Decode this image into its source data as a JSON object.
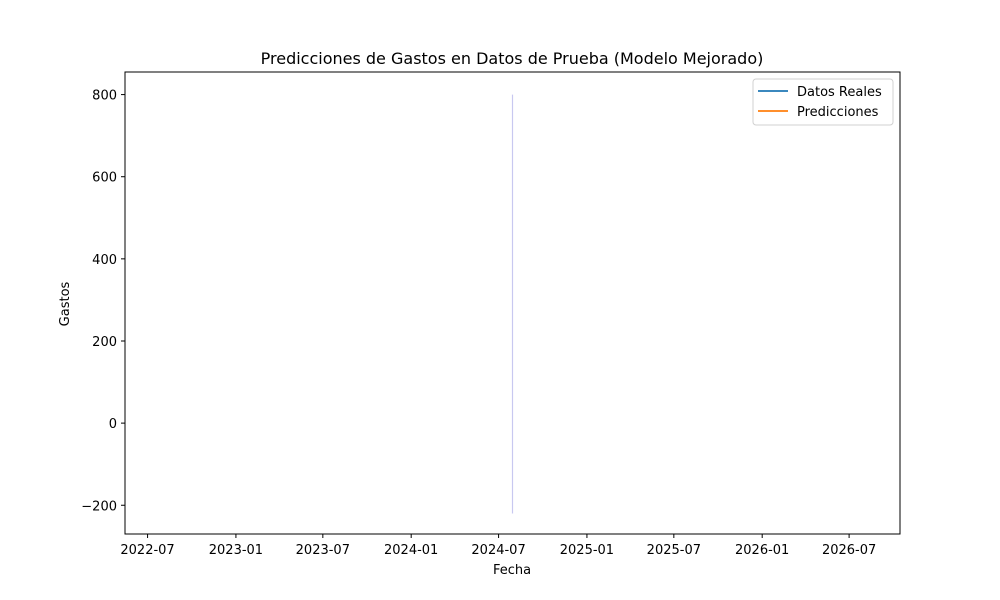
{
  "chart_data": {
    "type": "line",
    "title": "Predicciones de Gastos en Datos de Prueba (Modelo Mejorado)",
    "xlabel": "Fecha",
    "ylabel": "Gastos",
    "x_tick_labels": [
      "2022-07",
      "2023-01",
      "2023-07",
      "2024-01",
      "2024-07",
      "2025-01",
      "2025-07",
      "2026-01",
      "2026-07"
    ],
    "y_ticks": [
      -200,
      0,
      200,
      400,
      600,
      800
    ],
    "y_tick_labels": [
      "−200",
      "0",
      "200",
      "400",
      "600",
      "800"
    ],
    "xlim": [
      "2022-05-15",
      "2026-10-15"
    ],
    "ylim": [
      -270,
      855
    ],
    "grid": false,
    "legend_position": "top-right",
    "series": [
      {
        "name": "Datos Reales",
        "color": "#1f77b4",
        "x": [],
        "y": []
      },
      {
        "name": "Predicciones",
        "color": "#ff7f0e",
        "x": [],
        "y": []
      }
    ],
    "band": {
      "x": "2024-07-30",
      "y_low": -220,
      "y_high": 800,
      "color": "#c8c8f0"
    }
  }
}
